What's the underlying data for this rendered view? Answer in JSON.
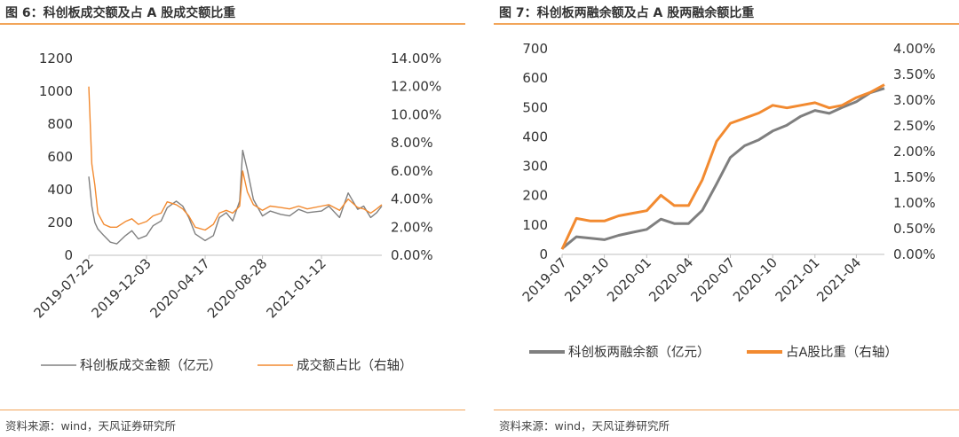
{
  "charts": [
    {
      "title": "图 6：科创板成交额及占 A 股成交额比重",
      "source": "资料来源：wind，天风证券研究所",
      "legend": [
        "科创板成交金额（亿元）",
        "成交额占比（右轴）"
      ],
      "series_colors": [
        "#808080",
        "#f28a30"
      ]
    },
    {
      "title": "图 7：科创板两融余额及占 A 股两融余额比重",
      "source": "资料来源：wind，天风证券研究所",
      "legend": [
        "科创板两融余额（亿元）",
        "占A股比重（右轴）"
      ],
      "series_colors": [
        "#7f7f7f",
        "#f28a30"
      ]
    }
  ],
  "chart_data": [
    {
      "type": "line",
      "title": "图 6：科创板成交额及占 A 股成交额比重",
      "x_tick_labels": [
        "2019-07-22",
        "2019-12-03",
        "2020-04-17",
        "2020-08-28",
        "2021-01-12"
      ],
      "x": [
        "2019-07-22",
        "2019-07-29",
        "2019-08-05",
        "2019-08-12",
        "2019-08-26",
        "2019-09-10",
        "2019-09-25",
        "2019-10-15",
        "2019-10-30",
        "2019-11-14",
        "2019-12-03",
        "2019-12-18",
        "2020-01-06",
        "2020-01-20",
        "2020-02-10",
        "2020-02-25",
        "2020-03-10",
        "2020-03-25",
        "2020-04-17",
        "2020-05-06",
        "2020-05-20",
        "2020-06-05",
        "2020-06-20",
        "2020-07-06",
        "2020-07-13",
        "2020-07-24",
        "2020-08-07",
        "2020-08-28",
        "2020-09-15",
        "2020-10-09",
        "2020-10-30",
        "2020-11-20",
        "2020-12-10",
        "2021-01-12",
        "2021-01-29",
        "2021-02-23",
        "2021-03-15",
        "2021-04-06",
        "2021-04-20",
        "2021-05-06",
        "2021-05-20",
        "2021-06-01"
      ],
      "series": [
        {
          "name": "科创板成交金额（亿元）",
          "axis": "left",
          "values": [
            480,
            300,
            200,
            160,
            120,
            80,
            70,
            120,
            150,
            100,
            120,
            180,
            210,
            290,
            330,
            300,
            230,
            130,
            90,
            120,
            230,
            260,
            210,
            330,
            640,
            520,
            340,
            240,
            270,
            250,
            240,
            280,
            260,
            270,
            300,
            230,
            380,
            280,
            300,
            230,
            260,
            300
          ]
        },
        {
          "name": "成交额占比（右轴）",
          "axis": "right",
          "values": [
            0.12,
            0.065,
            0.05,
            0.03,
            0.022,
            0.02,
            0.02,
            0.024,
            0.026,
            0.022,
            0.024,
            0.028,
            0.03,
            0.038,
            0.036,
            0.033,
            0.028,
            0.02,
            0.018,
            0.022,
            0.03,
            0.032,
            0.03,
            0.035,
            0.06,
            0.045,
            0.036,
            0.032,
            0.035,
            0.034,
            0.033,
            0.035,
            0.033,
            0.035,
            0.036,
            0.032,
            0.04,
            0.034,
            0.033,
            0.03,
            0.033,
            0.036
          ]
        }
      ],
      "y_left": {
        "range": [
          0,
          1200
        ],
        "ticks": [
          "0",
          "200",
          "400",
          "600",
          "800",
          "1000",
          "1200"
        ]
      },
      "y_right": {
        "range": [
          0,
          0.14
        ],
        "ticks": [
          "0.00%",
          "2.00%",
          "4.00%",
          "6.00%",
          "8.00%",
          "10.00%",
          "12.00%",
          "14.00%"
        ]
      },
      "grid": false,
      "legend_position": "bottom"
    },
    {
      "type": "line",
      "title": "图 7：科创板两融余额及占 A 股两融余额比重",
      "x_tick_labels": [
        "2019-07",
        "2019-10",
        "2020-01",
        "2020-04",
        "2020-07",
        "2020-10",
        "2021-01",
        "2021-04"
      ],
      "x": [
        "2019-07",
        "2019-08",
        "2019-09",
        "2019-10",
        "2019-11",
        "2019-12",
        "2020-01",
        "2020-02",
        "2020-03",
        "2020-04",
        "2020-05",
        "2020-06",
        "2020-07",
        "2020-08",
        "2020-09",
        "2020-10",
        "2020-11",
        "2020-12",
        "2021-01",
        "2021-02",
        "2021-03",
        "2021-04",
        "2021-05",
        "2021-06"
      ],
      "series": [
        {
          "name": "科创板两融余额（亿元）",
          "axis": "left",
          "values": [
            20,
            60,
            55,
            50,
            65,
            75,
            85,
            120,
            105,
            105,
            150,
            240,
            330,
            370,
            390,
            420,
            440,
            470,
            490,
            480,
            500,
            520,
            550,
            565
          ]
        },
        {
          "name": "占A股比重（右轴）",
          "axis": "right",
          "values": [
            0.001,
            0.007,
            0.0065,
            0.0065,
            0.0075,
            0.008,
            0.0085,
            0.0115,
            0.0095,
            0.0095,
            0.0145,
            0.022,
            0.0255,
            0.0265,
            0.0275,
            0.029,
            0.0285,
            0.029,
            0.0295,
            0.0285,
            0.029,
            0.0305,
            0.0315,
            0.033
          ]
        }
      ],
      "y_left": {
        "range": [
          0,
          700
        ],
        "ticks": [
          "0",
          "100",
          "200",
          "300",
          "400",
          "500",
          "600",
          "700"
        ]
      },
      "y_right": {
        "range": [
          0,
          0.04
        ],
        "ticks": [
          "0.00%",
          "0.50%",
          "1.00%",
          "1.50%",
          "2.00%",
          "2.50%",
          "3.00%",
          "3.50%",
          "4.00%"
        ]
      },
      "grid": false,
      "legend_position": "bottom"
    }
  ]
}
